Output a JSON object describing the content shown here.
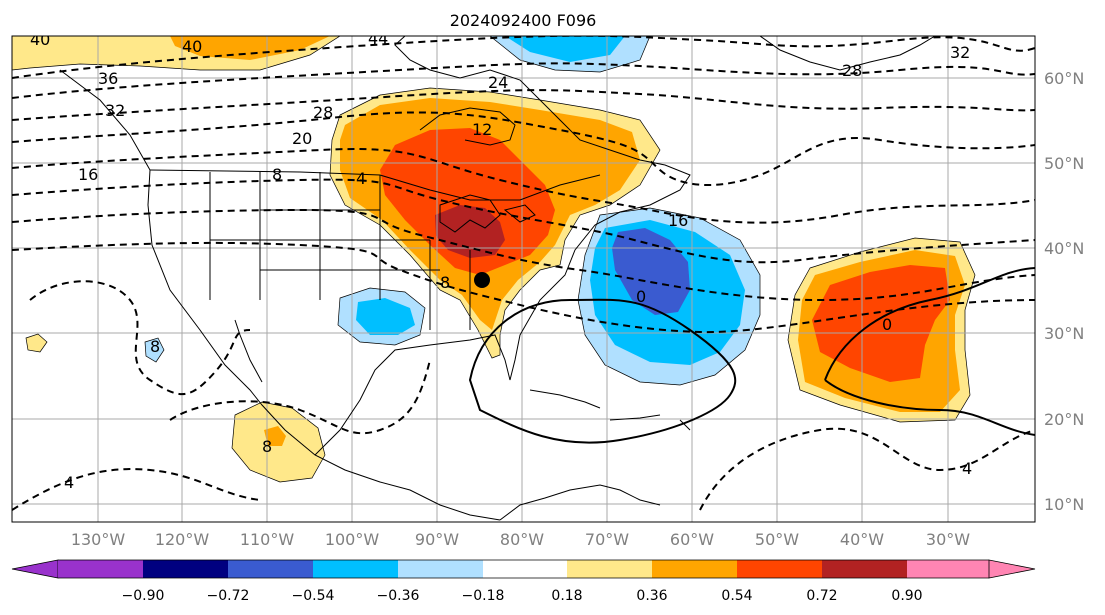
{
  "title": "2024092400 F096",
  "colors": {
    "c_n090": "#9932cc",
    "c_n072": "#000080",
    "c_n054": "#3a5bd0",
    "c_n036": "#00bfff",
    "c_n018": "#b0e0ff",
    "c_000": "#ffffff",
    "c_018": "#ffe88a",
    "c_036": "#ffa500",
    "c_054": "#ff4500",
    "c_072": "#b22222",
    "c_090": "#ff85b3"
  },
  "colorbar": {
    "ticks": [
      "−0.90",
      "−0.72",
      "−0.54",
      "−0.36",
      "−0.18",
      "0.18",
      "0.36",
      "0.54",
      "0.72",
      "0.90"
    ]
  },
  "map": {
    "lon_labels": [
      "130°W",
      "120°W",
      "110°W",
      "100°W",
      "90°W",
      "80°W",
      "70°W",
      "60°W",
      "50°W",
      "40°W",
      "30°W"
    ],
    "lat_labels": [
      "60°N",
      "50°N",
      "40°N",
      "30°N",
      "20°N",
      "10°N"
    ],
    "contour_labels": [
      "40",
      "40",
      "44",
      "36",
      "32",
      "28",
      "24",
      "32",
      "28",
      "20",
      "16",
      "12",
      "8",
      "4",
      "16",
      "8",
      "0",
      "0",
      "8",
      "8",
      "4",
      "4"
    ],
    "marker": "black-dot"
  }
}
